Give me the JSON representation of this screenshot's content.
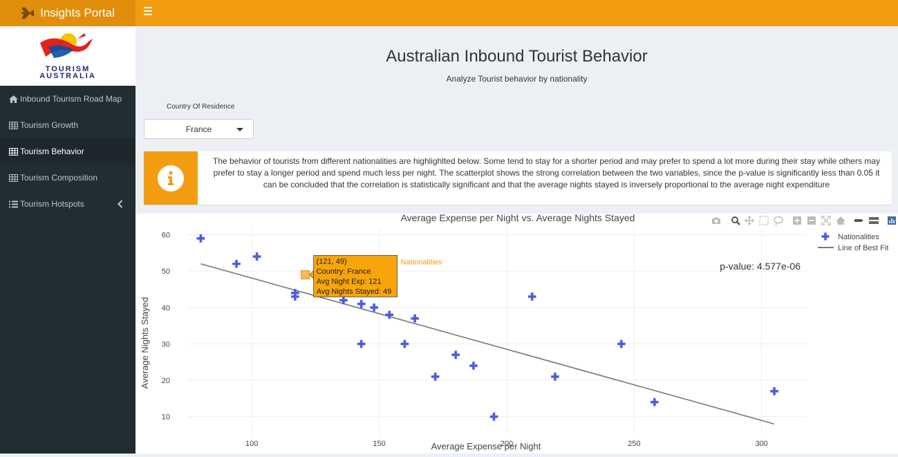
{
  "app": {
    "title": "Insights Portal",
    "brand_icon": "plane-icon"
  },
  "sidebar": {
    "logo": {
      "line1": "TOURISM",
      "line2": "AUSTRALIA"
    },
    "items": [
      {
        "label": "Inbound Tourism Road Map",
        "icon": "home-icon",
        "active": false
      },
      {
        "label": "Tourism Growth",
        "icon": "table-icon",
        "active": false
      },
      {
        "label": "Tourism Behavior",
        "icon": "table-icon",
        "active": true
      },
      {
        "label": "Tourism Composition",
        "icon": "table-icon",
        "active": false
      },
      {
        "label": "Tourism Hotspots",
        "icon": "list-icon",
        "active": false
      }
    ]
  },
  "page": {
    "title": "Australian Inbound Tourist Behavior",
    "subtitle": "Analyze Tourist behavior by nationality"
  },
  "filter": {
    "label": "Country Of Residence",
    "value": "France"
  },
  "info": {
    "text": "The behavior of tourists from different nationalities are highlighlted below. Some tend to stay for a shorter period and may prefer to spend a lot more during their stay while others may prefer to stay a longer period and spend much less per night. The scatterplot shows the strong correlation between the two variables, since the p-value is significantly less than 0.05 it can be concluded that the correlation is statistically significant and that the average nights stayed is inversely proportional to the average night expenditure"
  },
  "colors": {
    "accent": "#f39c12",
    "sidebar": "#222d32",
    "points": "#4d5de0",
    "fit_line": "#777777"
  },
  "chart_data": {
    "type": "scatter",
    "title": "Average Expense per Night vs. Average Nights Stayed",
    "xlabel": "Average Expense per Night",
    "ylabel": "Average Nights Stayed",
    "xlim": [
      75,
      318
    ],
    "ylim": [
      5,
      62
    ],
    "xticks": [
      100,
      150,
      200,
      250,
      300
    ],
    "yticks": [
      10,
      20,
      30,
      40,
      50,
      60
    ],
    "grid": true,
    "legend": {
      "placement": "top-right",
      "entries": [
        "Nationalities",
        "Line of Best Fit"
      ]
    },
    "annotation": "p-value: 4.577e-06",
    "series": [
      {
        "name": "Nationalities",
        "mode": "markers",
        "marker": "cross",
        "x": [
          80,
          94,
          102,
          117,
          117,
          121,
          136,
          143,
          143,
          148,
          154,
          160,
          164,
          172,
          180,
          187,
          195,
          210,
          219,
          245,
          258,
          305
        ],
        "y": [
          59,
          52,
          54,
          44,
          43,
          49,
          42,
          41,
          30,
          40,
          38,
          30,
          37,
          21,
          27,
          24,
          10,
          43,
          21,
          30,
          14,
          17
        ]
      },
      {
        "name": "Line of Best Fit",
        "mode": "lines",
        "x": [
          80,
          305
        ],
        "y": [
          52,
          8
        ]
      }
    ],
    "hover": {
      "x": 121,
      "y": 49,
      "label": "Nationalities",
      "lines": [
        "(121, 49)",
        "Country: France",
        "Avg Night Exp: 121",
        "Avg Nights Stayed: 49"
      ]
    },
    "toolbar": [
      "camera-icon",
      "zoom-icon",
      "pan-icon",
      "box-select-icon",
      "lasso-icon",
      "zoom-in-icon",
      "zoom-out-icon",
      "autoscale-icon",
      "reset-axes-icon",
      "spike-lines-icon",
      "hover-closest-icon",
      "hover-compare-icon",
      "plotly-logo-icon"
    ]
  }
}
